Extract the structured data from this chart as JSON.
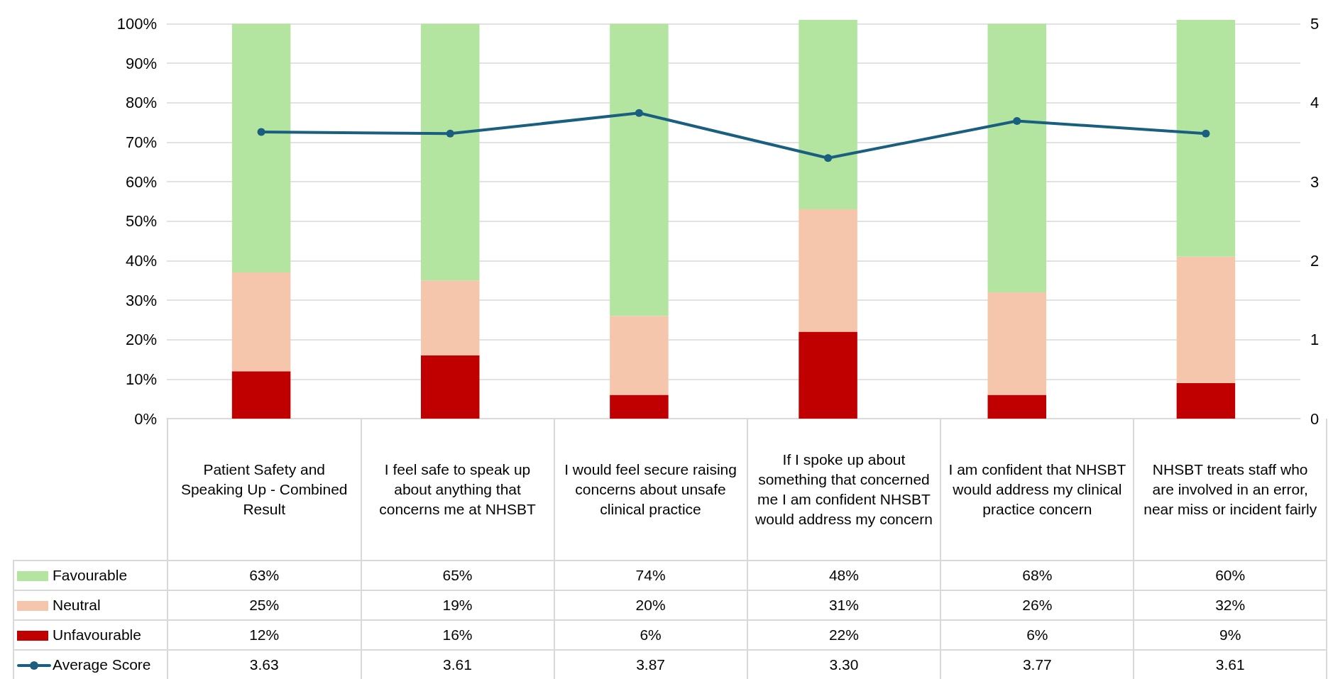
{
  "chart_data": {
    "type": "bar",
    "stacked": true,
    "categories": [
      "Patient Safety and Speaking Up - Combined Result",
      "I feel safe to speak up about anything that concerns me at NHSBT",
      "I would feel secure raising concerns about unsafe clinical practice",
      "If I spoke up about something that concerned me I am confident NHSBT would address my concern",
      "I am confident that NHSBT would address my clinical practice concern",
      "NHSBT treats staff who are involved in an error, near miss or incident fairly"
    ],
    "series": [
      {
        "name": "Unfavourable",
        "color": "#c00000",
        "values": [
          12,
          16,
          6,
          22,
          6,
          9
        ],
        "value_labels": [
          "12%",
          "16%",
          "6%",
          "22%",
          "6%",
          "9%"
        ]
      },
      {
        "name": "Neutral",
        "color": "#f5c6ab",
        "values": [
          25,
          19,
          20,
          31,
          26,
          32
        ],
        "value_labels": [
          "25%",
          "19%",
          "20%",
          "31%",
          "26%",
          "32%"
        ]
      },
      {
        "name": "Favourable",
        "color": "#b3e5a1",
        "values": [
          63,
          65,
          74,
          48,
          68,
          60
        ],
        "value_labels": [
          "63%",
          "65%",
          "74%",
          "48%",
          "68%",
          "60%"
        ]
      },
      {
        "name": "Average Score",
        "type": "line",
        "axis": "y2",
        "color": "#1a5f80",
        "values": [
          3.63,
          3.61,
          3.87,
          3.3,
          3.77,
          3.61
        ],
        "value_labels": [
          "3.63",
          "3.61",
          "3.87",
          "3.30",
          "3.77",
          "3.61"
        ]
      }
    ],
    "ylim": [
      0,
      101
    ],
    "yticks": [
      {
        "value": 0,
        "label": "0%"
      },
      {
        "value": 10,
        "label": "10%"
      },
      {
        "value": 20,
        "label": "20%"
      },
      {
        "value": 30,
        "label": "30%"
      },
      {
        "value": 40,
        "label": "40%"
      },
      {
        "value": 50,
        "label": "50%"
      },
      {
        "value": 60,
        "label": "60%"
      },
      {
        "value": 70,
        "label": "70%"
      },
      {
        "value": 80,
        "label": "80%"
      },
      {
        "value": 90,
        "label": "90%"
      },
      {
        "value": 100,
        "label": "100%"
      }
    ],
    "y2lim": [
      0,
      5.05
    ],
    "y2ticks": [
      0,
      1,
      2,
      3,
      4,
      5
    ],
    "grid": "y",
    "legend": "bottom left",
    "marker": "circle",
    "line_style": "solid"
  }
}
